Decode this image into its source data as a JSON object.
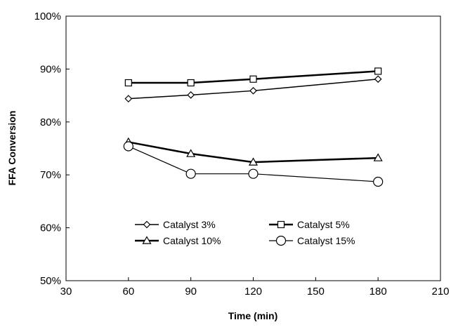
{
  "chart_data": {
    "type": "line",
    "title": "",
    "xlabel": "Time (min)",
    "ylabel": "FFA Conversion",
    "xlim": [
      30,
      210
    ],
    "ylim": [
      0.5,
      1.0
    ],
    "x_ticks": [
      30,
      60,
      90,
      120,
      150,
      180,
      210
    ],
    "x_tick_labels": [
      "30",
      "60",
      "90",
      "120",
      "150",
      "180",
      "210"
    ],
    "y_ticks": [
      0.5,
      0.6,
      0.7,
      0.8,
      0.9,
      1.0
    ],
    "y_tick_labels": [
      "50%",
      "60%",
      "70%",
      "80%",
      "90%",
      "100%"
    ],
    "grid": false,
    "legend_position": "lower-center inside plot, two columns",
    "series": [
      {
        "name": "Catalyst 3%",
        "marker": "diamond",
        "x": [
          60,
          90,
          120,
          180
        ],
        "values": [
          0.844,
          0.851,
          0.859,
          0.881
        ]
      },
      {
        "name": "Catalyst 5%",
        "marker": "square",
        "x": [
          60,
          90,
          120,
          180
        ],
        "values": [
          0.874,
          0.874,
          0.881,
          0.896
        ]
      },
      {
        "name": "Catalyst 10%",
        "marker": "triangle",
        "x": [
          60,
          90,
          120,
          180
        ],
        "values": [
          0.762,
          0.74,
          0.724,
          0.732
        ]
      },
      {
        "name": "Catalyst 15%",
        "marker": "circle",
        "x": [
          60,
          90,
          120,
          180
        ],
        "values": [
          0.754,
          0.702,
          0.702,
          0.687
        ]
      }
    ]
  }
}
